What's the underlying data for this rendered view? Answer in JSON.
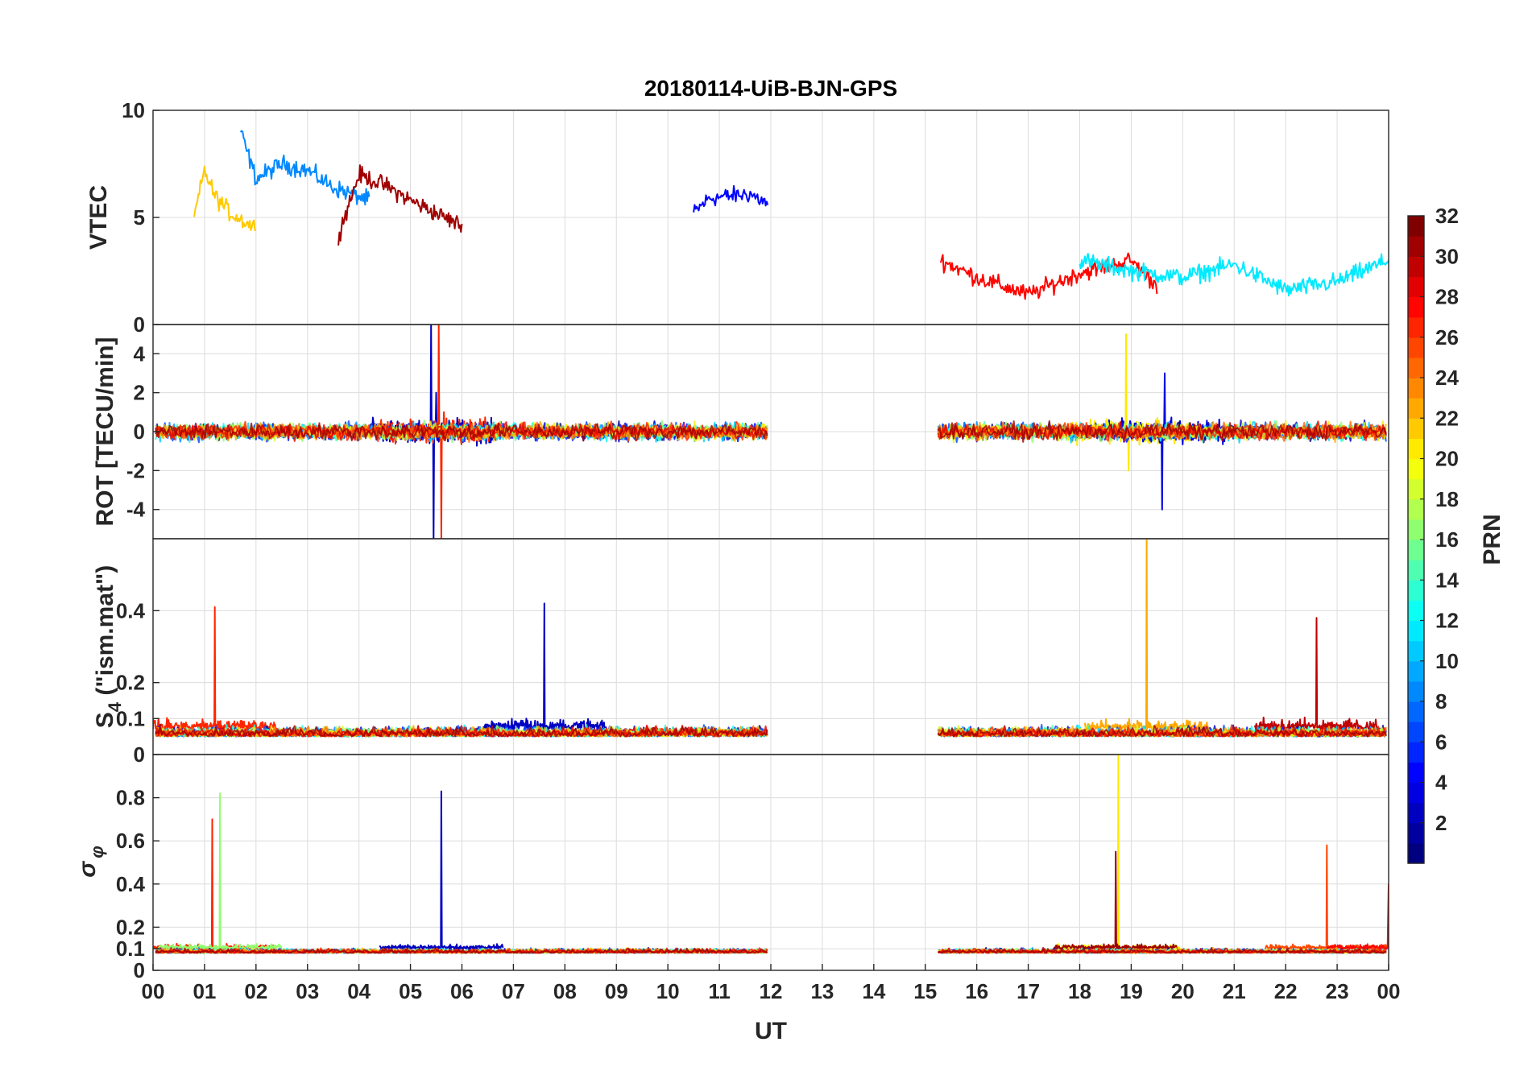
{
  "chart_data": {
    "type": "line",
    "title": "20180114-UiB-BJN-GPS",
    "xlabel": "UT",
    "x_ticks": [
      "00",
      "01",
      "02",
      "03",
      "04",
      "05",
      "06",
      "07",
      "08",
      "09",
      "10",
      "11",
      "12",
      "13",
      "14",
      "15",
      "16",
      "17",
      "18",
      "19",
      "20",
      "21",
      "22",
      "23",
      "00"
    ],
    "xlim": [
      0,
      24
    ],
    "data_gap_hours": [
      11.95,
      15.25
    ],
    "grid": true,
    "colorbar": {
      "label": "PRN",
      "colormap": "jet",
      "range": [
        1,
        32
      ],
      "ticks": [
        "2",
        "4",
        "6",
        "8",
        "10",
        "12",
        "14",
        "16",
        "18",
        "20",
        "22",
        "24",
        "26",
        "28",
        "30",
        "32"
      ],
      "position": "right"
    },
    "panels": [
      {
        "id": "vtec",
        "ylabel": "VTEC",
        "ylim": [
          0,
          10
        ],
        "y_ticks": [
          0,
          5,
          10
        ],
        "y_tick_labels": [
          "0",
          "5",
          "10"
        ],
        "series": [
          {
            "prn": 5,
            "x": [
              10.5,
              10.8,
              11.2,
              11.6,
              11.95
            ],
            "y": [
              5.2,
              5.9,
              6.0,
              6.1,
              5.6
            ]
          },
          {
            "prn": 9,
            "x": [
              1.7,
              2.0,
              2.5,
              3.0,
              3.5,
              4.2
            ],
            "y": [
              9.0,
              6.8,
              7.5,
              7.2,
              6.4,
              5.8
            ]
          },
          {
            "prn": 22,
            "x": [
              0.8,
              1.0,
              1.2,
              1.5,
              2.0
            ],
            "y": [
              5.0,
              7.2,
              6.0,
              5.2,
              4.5
            ]
          },
          {
            "prn": 31,
            "x": [
              3.6,
              4.0,
              4.5,
              5.0,
              5.5,
              6.0
            ],
            "y": [
              4.2,
              7.0,
              6.5,
              5.8,
              5.2,
              4.6
            ]
          },
          {
            "prn": 28,
            "x": [
              15.3,
              16.0,
              17.0,
              18.0,
              19.0,
              19.5
            ],
            "y": [
              3.0,
              2.2,
              1.4,
              2.4,
              3.0,
              1.8
            ]
          },
          {
            "prn": 12,
            "x": [
              18.0,
              19.0,
              20.0,
              21.0,
              22.0,
              23.0,
              24.0
            ],
            "y": [
              3.0,
              2.5,
              2.2,
              2.8,
              1.6,
              2.0,
              3.0
            ]
          }
        ]
      },
      {
        "id": "rot",
        "ylabel": "ROT [TECU/min]",
        "ylim": [
          -5.5,
          5.5
        ],
        "y_ticks": [
          -4,
          -2,
          0,
          2,
          4
        ],
        "y_tick_labels": [
          "-4",
          "-2",
          "0",
          "2",
          "4"
        ],
        "series": [
          {
            "prn": 3,
            "x": [
              5.4,
              5.45,
              5.5
            ],
            "y": [
              5.5,
              -5.5,
              2.0
            ]
          },
          {
            "prn": 27,
            "x": [
              5.55,
              5.6,
              5.65
            ],
            "y": [
              5.5,
              -5.5,
              1.0
            ]
          },
          {
            "prn": 21,
            "x": [
              18.9,
              18.95,
              19.0
            ],
            "y": [
              5.0,
              -2.0,
              0.0
            ]
          },
          {
            "prn": 4,
            "x": [
              19.6,
              19.65,
              19.7
            ],
            "y": [
              -4.0,
              3.0,
              0.0
            ]
          }
        ]
      },
      {
        "id": "s4",
        "ylabel": "S",
        "ylabel_sub": "4",
        "ylabel_tail": " (\"ism.mat\")",
        "ylim": [
          0,
          0.6
        ],
        "y_ticks": [
          0,
          0.1,
          0.2,
          0.4
        ],
        "y_tick_labels": [
          "0",
          "0.1",
          "0.2",
          "0.4"
        ],
        "series": [
          {
            "prn": 27,
            "x": [
              1.2
            ],
            "y": [
              0.41
            ]
          },
          {
            "prn": 3,
            "x": [
              7.6
            ],
            "y": [
              0.42
            ]
          },
          {
            "prn": 23,
            "x": [
              19.3
            ],
            "y": [
              0.6
            ]
          },
          {
            "prn": 30,
            "x": [
              22.6
            ],
            "y": [
              0.38
            ]
          }
        ]
      },
      {
        "id": "sigma_phi",
        "ylabel": "σ",
        "ylabel_sub": "φ",
        "ylim": [
          0,
          1.0
        ],
        "y_ticks": [
          0,
          0.1,
          0.2,
          0.4,
          0.6,
          0.8
        ],
        "y_tick_labels": [
          "0",
          "0.1",
          "0.2",
          "0.4",
          "0.6",
          "0.8"
        ],
        "series": [
          {
            "prn": 27,
            "x": [
              1.15
            ],
            "y": [
              0.7
            ]
          },
          {
            "prn": 17,
            "x": [
              1.3
            ],
            "y": [
              0.82
            ]
          },
          {
            "prn": 3,
            "x": [
              5.6
            ],
            "y": [
              0.83
            ]
          },
          {
            "prn": 21,
            "x": [
              18.75
            ],
            "y": [
              1.0
            ]
          },
          {
            "prn": 31,
            "x": [
              18.7
            ],
            "y": [
              0.55
            ]
          },
          {
            "prn": 26,
            "x": [
              22.8
            ],
            "y": [
              0.58
            ]
          },
          {
            "prn": 28,
            "x": [
              24.0
            ],
            "y": [
              0.4
            ]
          }
        ]
      }
    ]
  }
}
